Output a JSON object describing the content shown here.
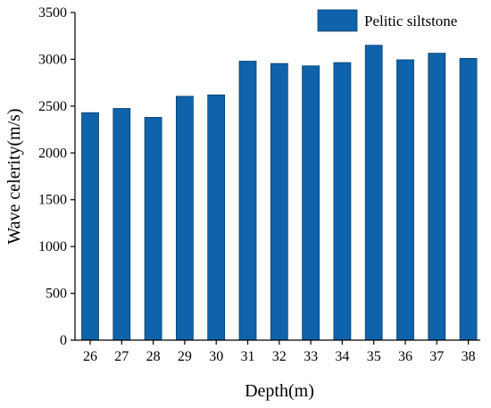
{
  "chart_data": {
    "type": "bar",
    "xlabel": "Depth(m)",
    "ylabel": "Wave celerity(m/s)",
    "categories": [
      "26",
      "27",
      "28",
      "29",
      "30",
      "31",
      "32",
      "33",
      "34",
      "35",
      "36",
      "37",
      "38"
    ],
    "series": [
      {
        "name": "Pelitic siltstone",
        "color": "#0e63aa",
        "values": [
          2430,
          2475,
          2380,
          2605,
          2620,
          2980,
          2955,
          2930,
          2965,
          3150,
          2995,
          3065,
          3010
        ]
      }
    ],
    "ylim": [
      0,
      3500
    ],
    "yticks": [
      "0",
      "500",
      "1000",
      "1500",
      "2000",
      "2500",
      "3000",
      "3500"
    ],
    "grid": false,
    "legend": "top-right"
  }
}
